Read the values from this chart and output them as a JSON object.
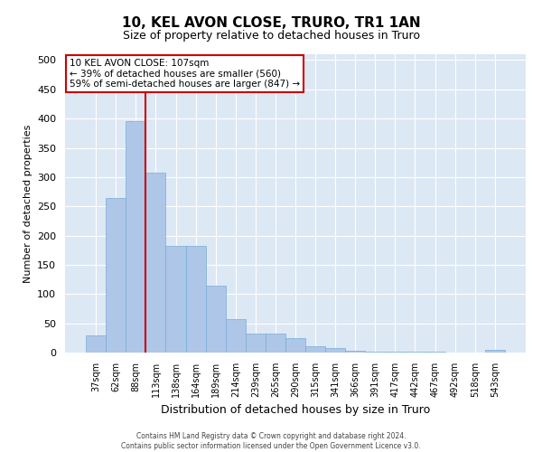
{
  "title": "10, KEL AVON CLOSE, TRURO, TR1 1AN",
  "subtitle": "Size of property relative to detached houses in Truro",
  "xlabel": "Distribution of detached houses by size in Truro",
  "ylabel": "Number of detached properties",
  "categories": [
    "37sqm",
    "62sqm",
    "88sqm",
    "113sqm",
    "138sqm",
    "164sqm",
    "189sqm",
    "214sqm",
    "239sqm",
    "265sqm",
    "290sqm",
    "315sqm",
    "341sqm",
    "366sqm",
    "391sqm",
    "417sqm",
    "442sqm",
    "467sqm",
    "492sqm",
    "518sqm",
    "543sqm"
  ],
  "values": [
    30,
    265,
    395,
    308,
    182,
    182,
    115,
    57,
    32,
    32,
    25,
    11,
    7,
    3,
    2,
    1,
    1,
    1,
    0,
    0,
    5
  ],
  "bar_color": "#aec6e8",
  "bar_edge_color": "#7aadd4",
  "vline_color": "#cc0000",
  "vline_x_index": 2,
  "annotation_text": "10 KEL AVON CLOSE: 107sqm\n← 39% of detached houses are smaller (560)\n59% of semi-detached houses are larger (847) →",
  "annotation_box_facecolor": "white",
  "annotation_box_edgecolor": "#cc0000",
  "ylim": [
    0,
    510
  ],
  "yticks": [
    0,
    50,
    100,
    150,
    200,
    250,
    300,
    350,
    400,
    450,
    500
  ],
  "background_color": "#dde8f5",
  "grid_color": "white",
  "title_fontsize": 11,
  "subtitle_fontsize": 9,
  "ylabel_fontsize": 8,
  "xlabel_fontsize": 9,
  "footer_line1": "Contains HM Land Registry data © Crown copyright and database right 2024.",
  "footer_line2": "Contains public sector information licensed under the Open Government Licence v3.0."
}
